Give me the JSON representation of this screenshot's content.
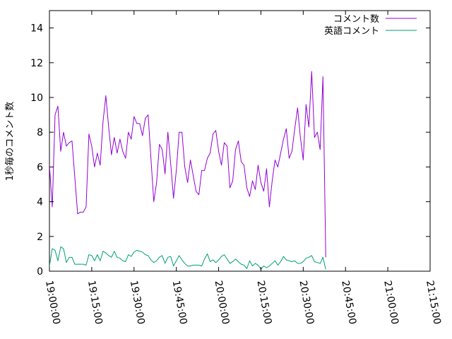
{
  "chart_data": {
    "type": "line",
    "title": "",
    "xlabel": "",
    "ylabel": "1秒毎のコメント数",
    "ylim": [
      0,
      15
    ],
    "yticks": [
      0,
      2,
      4,
      6,
      8,
      10,
      12,
      14
    ],
    "xlim": [
      "19:00:00",
      "21:15:00"
    ],
    "xticks": [
      "19:00:00",
      "19:15:00",
      "19:30:00",
      "19:45:00",
      "20:00:00",
      "20:15:00",
      "20:30:00",
      "20:45:00",
      "21:00:00",
      "21:15:00"
    ],
    "x_start": "18:58:00",
    "x_end": "21:15:00",
    "x_step_seconds": 60,
    "legend_position": "top-right",
    "grid": false,
    "series": [
      {
        "name": "コメント数",
        "color": "#9400d3",
        "values": [
          4.0,
          4.0,
          6.1,
          3.7,
          9.0,
          9.5,
          6.9,
          8.0,
          7.2,
          7.4,
          7.5,
          5.4,
          3.3,
          3.4,
          3.4,
          3.7,
          7.9,
          7.2,
          6.0,
          6.8,
          6.1,
          8.6,
          10.1,
          8.3,
          6.7,
          7.7,
          6.8,
          7.6,
          6.9,
          6.5,
          8.0,
          7.6,
          8.9,
          8.5,
          8.5,
          7.8,
          8.8,
          9.0,
          6.5,
          4.0,
          5.1,
          7.3,
          7.0,
          5.6,
          8.0,
          6.2,
          4.2,
          5.8,
          8.0,
          8.0,
          6.0,
          5.1,
          6.4,
          5.5,
          4.6,
          4.4,
          5.8,
          5.8,
          6.5,
          6.8,
          7.9,
          8.1,
          6.9,
          6.1,
          7.4,
          7.2,
          4.8,
          5.2,
          7.0,
          7.5,
          6.3,
          6.1,
          4.8,
          4.3,
          5.2,
          4.7,
          6.1,
          5.1,
          4.6,
          5.9,
          3.7,
          5.2,
          6.4,
          6.0,
          6.8,
          7.6,
          8.2,
          6.5,
          6.9,
          8.2,
          9.4,
          7.7,
          6.4,
          9.6,
          8.3,
          11.5,
          7.7,
          8.0,
          7.0,
          11.2,
          0.8
        ]
      },
      {
        "name": "英語コメント",
        "color": "#009e73",
        "values": [
          0.0,
          0.2,
          0.3,
          1.3,
          1.2,
          0.6,
          1.4,
          1.3,
          0.5,
          0.8,
          0.8,
          0.4,
          0.4,
          0.4,
          0.4,
          0.35,
          0.95,
          0.9,
          0.6,
          0.95,
          0.6,
          1.15,
          1.05,
          0.9,
          0.8,
          1.15,
          0.8,
          0.75,
          0.6,
          0.55,
          0.95,
          0.85,
          1.1,
          1.2,
          1.15,
          1.1,
          0.95,
          0.9,
          0.65,
          0.5,
          0.6,
          0.8,
          0.9,
          0.45,
          0.8,
          0.85,
          0.3,
          0.6,
          0.9,
          0.65,
          0.45,
          0.3,
          0.3,
          0.35,
          0.35,
          0.35,
          0.3,
          0.7,
          1.0,
          0.55,
          0.65,
          0.5,
          0.65,
          0.85,
          0.95,
          0.7,
          0.45,
          0.55,
          0.7,
          0.55,
          0.4,
          0.35,
          0.15,
          0.6,
          0.3,
          0.45,
          0.35,
          0.1,
          0.3,
          0.2,
          0.3,
          0.45,
          0.6,
          0.35,
          0.55,
          0.85,
          0.65,
          0.6,
          0.55,
          0.6,
          0.45,
          0.45,
          0.55,
          0.75,
          0.8,
          0.9,
          0.55,
          0.5,
          0.45,
          0.8,
          0.1
        ]
      }
    ]
  }
}
